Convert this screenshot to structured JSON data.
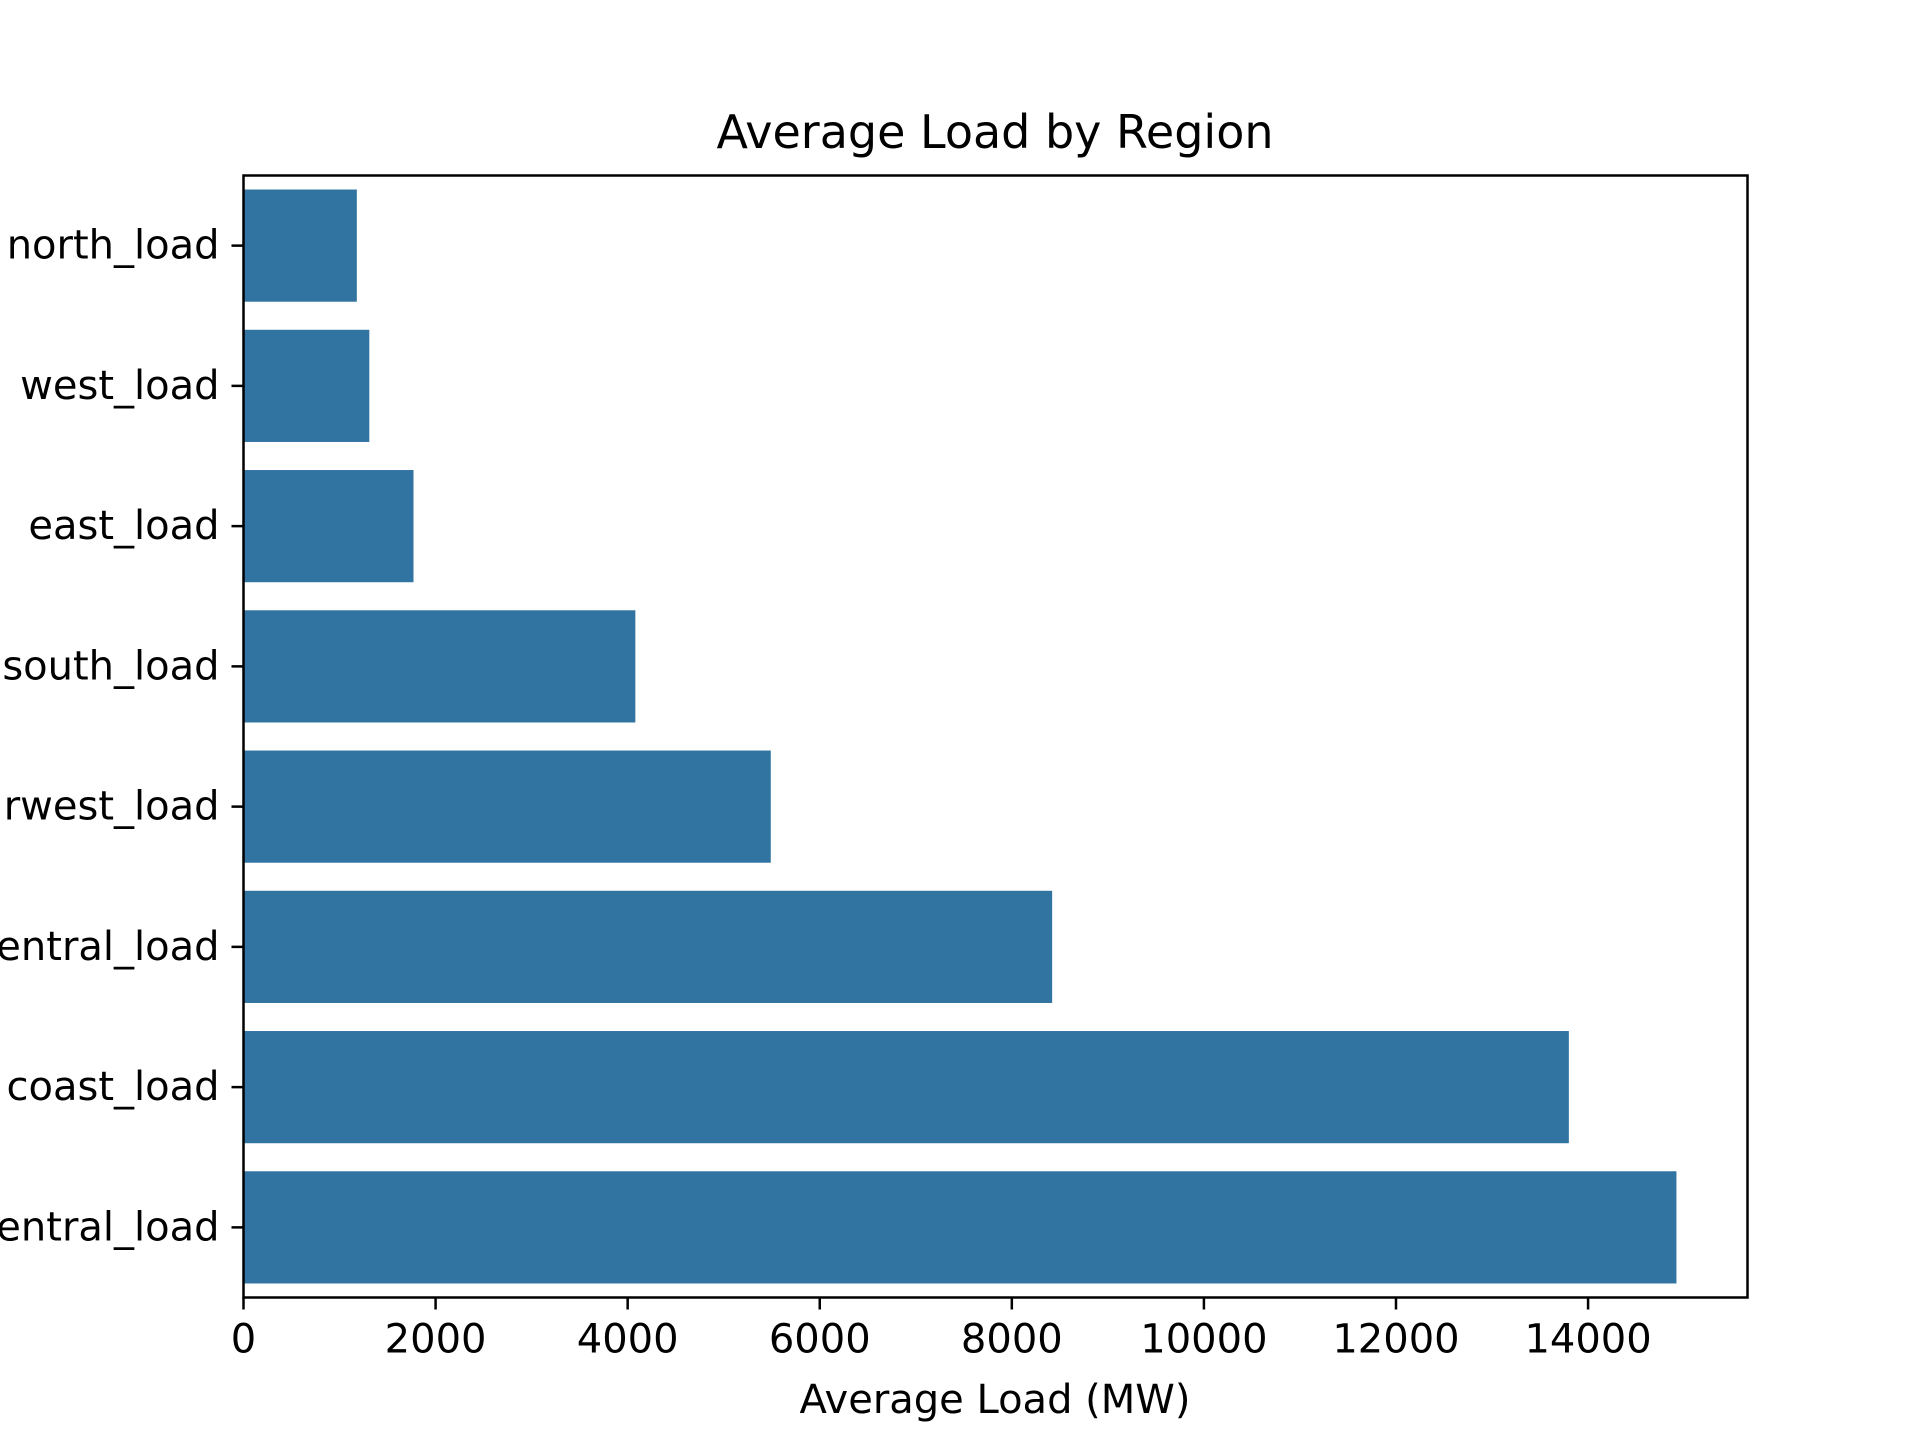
{
  "chart_data": {
    "type": "bar",
    "orientation": "horizontal",
    "title": "Average Load by Region",
    "xlabel": "Average Load (MW)",
    "ylabel": "",
    "categories": [
      "north_load",
      "west_load",
      "east_load",
      "south_load",
      "rwest_load",
      "entral_load",
      "coast_load",
      "entral_load"
    ],
    "values": [
      1180,
      1310,
      1770,
      4080,
      5490,
      8420,
      13800,
      14920
    ],
    "xlim": [
      0,
      15660
    ],
    "xticks": [
      0,
      2000,
      4000,
      6000,
      8000,
      10000,
      12000,
      14000
    ],
    "xtick_labels": [
      "0",
      "2000",
      "4000",
      "6000",
      "8000",
      "10000",
      "12000",
      "14000"
    ],
    "grid": false,
    "bar_color": "#3274a1"
  }
}
